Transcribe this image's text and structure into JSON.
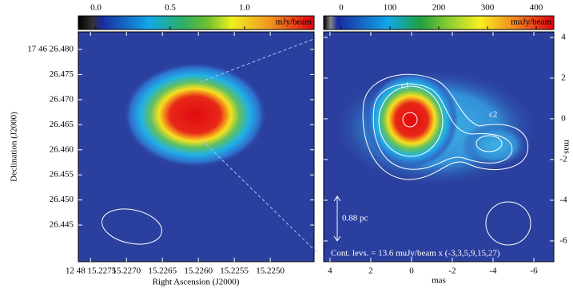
{
  "left_panel": {
    "colorbar": {
      "label": "mJy/beam",
      "lim": [
        -0.118,
        1.468
      ],
      "ticks": [
        {
          "value": 0,
          "label": "0.0"
        },
        0.5,
        {
          "value": 1,
          "label": "1.0"
        }
      ]
    },
    "xlabel": "Right Ascension (J2000)",
    "ylabel": "Declination (J2000)",
    "xlim": [
      15.22767,
      15.22439
    ],
    "ylim": [
      26.4377,
      26.4835
    ],
    "xticks": [
      {
        "value": 15.2275,
        "label": "12 48 15.2275"
      },
      {
        "value": 15.227,
        "label": "15.2270"
      },
      15.2265,
      {
        "value": 15.226,
        "label": "15.2260"
      },
      15.2255,
      {
        "value": 15.225,
        "label": "15.2250"
      }
    ],
    "yticks": [
      {
        "value": 26.48,
        "label": "17 46 26.480"
      },
      26.475,
      {
        "value": 26.47,
        "label": "26.470"
      },
      26.465,
      {
        "value": 26.46,
        "label": "26.460"
      },
      26.455,
      {
        "value": 26.45,
        "label": "26.450"
      },
      26.445
    ]
  },
  "right_panel": {
    "colorbar": {
      "label": "muJy/beam",
      "lim": [
        -36,
        436
      ],
      "ticks": [
        0,
        100,
        200,
        300,
        400
      ]
    },
    "xlabel": "mas",
    "ylabel": "mas",
    "xlim": [
      4.31,
      -6.98
    ],
    "ylim": [
      -7.02,
      4.27
    ],
    "xticks": [
      4,
      2,
      0,
      -2,
      -4,
      -6
    ],
    "yticks": [
      4,
      2,
      0,
      -2,
      -4,
      -6
    ],
    "annotations": {
      "c1": "c1",
      "c2": "c2",
      "scale": "0.88 pc",
      "contours": "Cont. levs. = 13.6 muJy/beam x (-3,3,5,9,15,27)"
    }
  }
}
